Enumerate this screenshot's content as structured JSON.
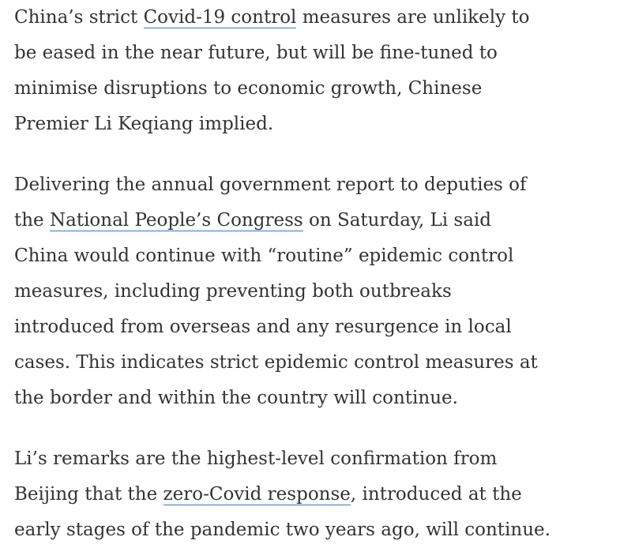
{
  "article": {
    "paragraphs": [
      {
        "lines": [
          {
            "before": "China’s strict ",
            "link": "Covid-19 control",
            "after": " measures are unlikely to"
          },
          {
            "text": "be eased in the near future, but will be fine-tuned to"
          },
          {
            "text": "minimise disruptions to economic growth, Chinese"
          },
          {
            "text": "Premier Li Keqiang implied."
          }
        ]
      },
      {
        "lines": [
          {
            "text": "Delivering the annual government report to deputies of"
          },
          {
            "before": "the ",
            "link": "National People’s Congress",
            "after": " on Saturday, Li said"
          },
          {
            "text": "China would continue with “routine” epidemic control"
          },
          {
            "text": "measures, including preventing both outbreaks"
          },
          {
            "text": "introduced from overseas and any resurgence in local"
          },
          {
            "text": "cases. This indicates strict epidemic control measures at"
          },
          {
            "text": "the border and within the country will continue."
          }
        ]
      },
      {
        "lines": [
          {
            "text": "Li’s remarks are the highest-level confirmation from"
          },
          {
            "before": "Beijing that the ",
            "link": "zero-Covid response",
            "after": ", introduced at the"
          },
          {
            "text": "early stages of the pandemic two years ago, will continue."
          }
        ]
      }
    ],
    "colors": {
      "text": "#333333",
      "link_underline": "#2b7bd0"
    }
  }
}
